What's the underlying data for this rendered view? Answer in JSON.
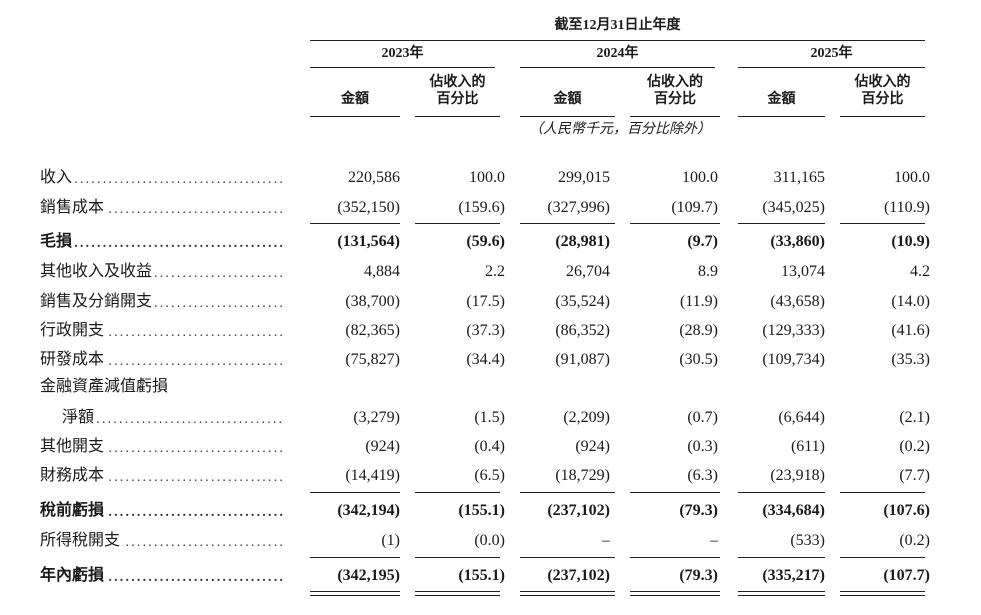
{
  "header": {
    "period": "截至12月31日止年度",
    "years": [
      "2023年",
      "2024年",
      "2025年"
    ],
    "col_amount": "金額",
    "col_pct_line1": "佔收入的",
    "col_pct_line2": "百分比",
    "unit_note": "（人民幣千元，百分比除外）"
  },
  "rows": [
    {
      "label": "收入",
      "bold": false,
      "values": [
        "220,586",
        "100.0",
        "299,015",
        "100.0",
        "311,165",
        "100.0"
      ]
    },
    {
      "label": "銷售成本",
      "bold": false,
      "values": [
        "(352,150)",
        "(159.6)",
        "(327,996)",
        "(109.7)",
        "(345,025)",
        "(110.9)"
      ]
    },
    {
      "label": "毛損",
      "bold": true,
      "values": [
        "(131,564)",
        "(59.6)",
        "(28,981)",
        "(9.7)",
        "(33,860)",
        "(10.9)"
      ]
    },
    {
      "label": "其他收入及收益",
      "bold": false,
      "values": [
        "4,884",
        "2.2",
        "26,704",
        "8.9",
        "13,074",
        "4.2"
      ]
    },
    {
      "label": "銷售及分銷開支",
      "bold": false,
      "values": [
        "(38,700)",
        "(17.5)",
        "(35,524)",
        "(11.9)",
        "(43,658)",
        "(14.0)"
      ]
    },
    {
      "label": "行政開支",
      "bold": false,
      "values": [
        "(82,365)",
        "(37.3)",
        "(86,352)",
        "(28.9)",
        "(129,333)",
        "(41.6)"
      ]
    },
    {
      "label": "研發成本",
      "bold": false,
      "values": [
        "(75,827)",
        "(34.4)",
        "(91,087)",
        "(30.5)",
        "(109,734)",
        "(35.3)"
      ]
    },
    {
      "label": "金融資產減值虧損",
      "bold": false,
      "values": []
    },
    {
      "label": "淨額",
      "bold": false,
      "indent": true,
      "values": [
        "(3,279)",
        "(1.5)",
        "(2,209)",
        "(0.7)",
        "(6,644)",
        "(2.1)"
      ]
    },
    {
      "label": "其他開支",
      "bold": false,
      "values": [
        "(924)",
        "(0.4)",
        "(924)",
        "(0.3)",
        "(611)",
        "(0.2)"
      ]
    },
    {
      "label": "財務成本",
      "bold": false,
      "values": [
        "(14,419)",
        "(6.5)",
        "(18,729)",
        "(6.3)",
        "(23,918)",
        "(7.7)"
      ]
    },
    {
      "label": "稅前虧損",
      "bold": true,
      "values": [
        "(342,194)",
        "(155.1)",
        "(237,102)",
        "(79.3)",
        "(334,684)",
        "(107.6)"
      ]
    },
    {
      "label": "所得稅開支",
      "bold": false,
      "values": [
        "(1)",
        "(0.0)",
        "–",
        "–",
        "(533)",
        "(0.2)"
      ]
    },
    {
      "label": "年內虧損",
      "bold": true,
      "values": [
        "(342,195)",
        "(155.1)",
        "(237,102)",
        "(79.3)",
        "(335,217)",
        "(107.7)"
      ]
    }
  ],
  "dot_leader": "................................................................................"
}
